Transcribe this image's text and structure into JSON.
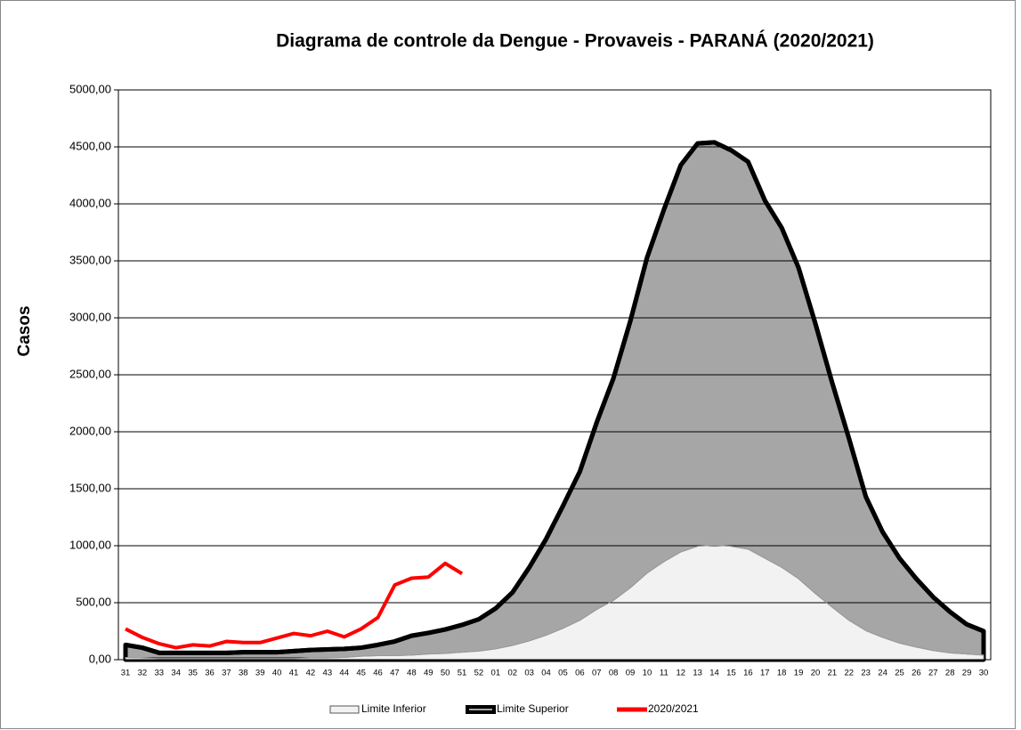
{
  "chart_data": {
    "type": "area",
    "title": "Diagrama de controle da Dengue - Provaveis - PARANÁ  (2020/2021)",
    "y_label": "Casos",
    "categories": [
      "31",
      "32",
      "33",
      "34",
      "35",
      "36",
      "37",
      "38",
      "39",
      "40",
      "41",
      "42",
      "43",
      "44",
      "45",
      "46",
      "47",
      "48",
      "49",
      "50",
      "51",
      "52",
      "01",
      "02",
      "03",
      "04",
      "05",
      "06",
      "07",
      "08",
      "09",
      "10",
      "11",
      "12",
      "13",
      "14",
      "15",
      "16",
      "17",
      "18",
      "19",
      "20",
      "21",
      "22",
      "23",
      "24",
      "25",
      "26",
      "27",
      "28",
      "29",
      "30"
    ],
    "series": [
      {
        "name": "Limite Inferior",
        "color": "#f2f2f2",
        "values": [
          20,
          15,
          10,
          10,
          10,
          10,
          10,
          10,
          10,
          10,
          10,
          15,
          15,
          20,
          30,
          35,
          35,
          40,
          50,
          55,
          65,
          75,
          95,
          125,
          165,
          215,
          275,
          345,
          440,
          520,
          630,
          760,
          860,
          945,
          995,
          1005,
          995,
          970,
          890,
          810,
          710,
          580,
          460,
          345,
          255,
          195,
          145,
          110,
          80,
          60,
          50,
          40
        ]
      },
      {
        "name": "Limite Superior",
        "color": "#a6a6a6",
        "values": [
          130,
          105,
          60,
          60,
          60,
          60,
          60,
          65,
          65,
          65,
          75,
          85,
          90,
          95,
          105,
          130,
          160,
          210,
          235,
          265,
          305,
          355,
          450,
          590,
          810,
          1060,
          1350,
          1650,
          2080,
          2470,
          2970,
          3530,
          3950,
          4340,
          4530,
          4540,
          4470,
          4370,
          4030,
          3790,
          3440,
          2950,
          2430,
          1940,
          1430,
          1120,
          890,
          710,
          550,
          420,
          310,
          250
        ]
      },
      {
        "name": "2020/2021",
        "color": "#ff0000",
        "values": [
          270,
          195,
          140,
          105,
          130,
          120,
          160,
          150,
          150,
          190,
          230,
          210,
          250,
          200,
          270,
          370,
          655,
          715,
          725,
          845,
          755,
          null,
          null,
          null,
          null,
          null,
          null,
          null,
          null,
          null,
          null,
          null,
          null,
          null,
          null,
          null,
          null,
          null,
          null,
          null,
          null,
          null,
          null,
          null,
          null,
          null,
          null,
          null,
          null,
          null,
          null,
          null
        ]
      }
    ],
    "ylim": [
      0,
      5000
    ],
    "yticks": [
      {
        "value": 0,
        "label": "0,00"
      },
      {
        "value": 500,
        "label": "500,00"
      },
      {
        "value": 1000,
        "label": "1000,00"
      },
      {
        "value": 1500,
        "label": "1500,00"
      },
      {
        "value": 2000,
        "label": "2000,00"
      },
      {
        "value": 2500,
        "label": "2500,00"
      },
      {
        "value": 3000,
        "label": "3000,00"
      },
      {
        "value": 3500,
        "label": "3500,00"
      },
      {
        "value": 4000,
        "label": "4000,00"
      },
      {
        "value": 4500,
        "label": "4500,00"
      },
      {
        "value": 5000,
        "label": "5000,00"
      }
    ],
    "grid": true,
    "legend": "bottom"
  }
}
